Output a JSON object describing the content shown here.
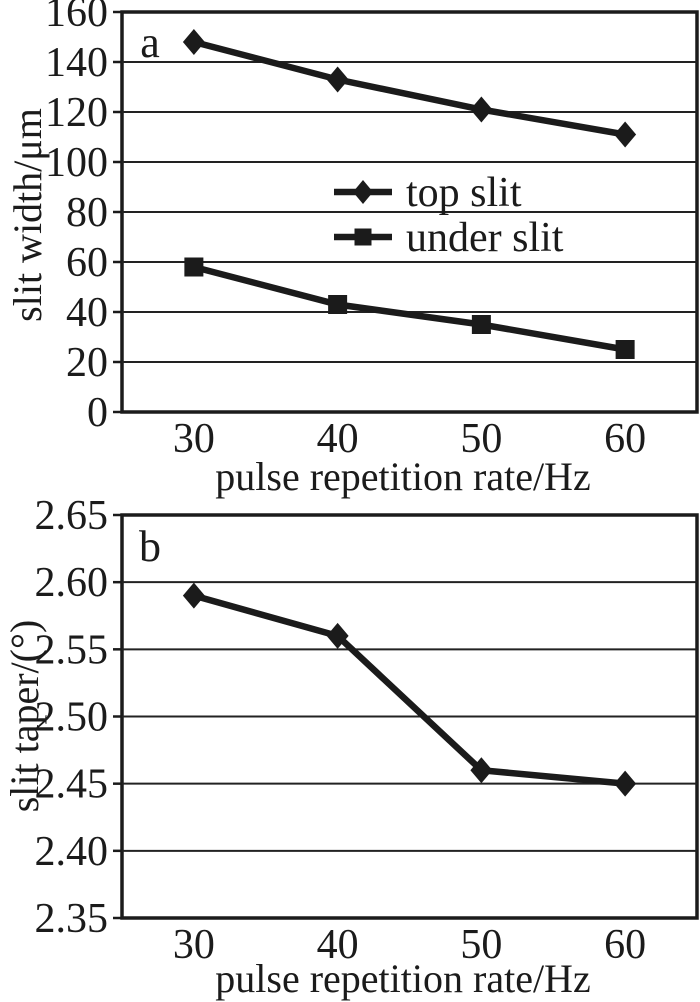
{
  "figure": {
    "background": "#ffffff",
    "ink": "#1b1b1b",
    "grid_color": "#222222"
  },
  "chart_data": [
    {
      "type": "line",
      "panel_label": "a",
      "title": "",
      "xlabel": "pulse repetition rate/Hz",
      "ylabel": "slit width/μm",
      "x": [
        30,
        40,
        50,
        60
      ],
      "xtick_labels": [
        "30",
        "40",
        "50",
        "60"
      ],
      "ylim": [
        0,
        160
      ],
      "ytick_step": 20,
      "ytick_labels": [
        "0",
        "20",
        "40",
        "60",
        "80",
        "100",
        "120",
        "140",
        "160"
      ],
      "grid": "horizontal",
      "series": [
        {
          "name": "top slit",
          "marker": "diamond",
          "values": [
            148,
            133,
            121,
            111
          ]
        },
        {
          "name": "under slit",
          "marker": "square",
          "values": [
            58,
            43,
            35,
            25
          ]
        }
      ],
      "legend": {
        "position": "inside-center",
        "entries": [
          "top slit",
          "under slit"
        ]
      }
    },
    {
      "type": "line",
      "panel_label": "b",
      "title": "",
      "xlabel": "pulse repetition rate/Hz",
      "ylabel": "slit taper/(°)",
      "x": [
        30,
        40,
        50,
        60
      ],
      "xtick_labels": [
        "30",
        "40",
        "50",
        "60"
      ],
      "ylim": [
        2.35,
        2.65
      ],
      "ytick_step": 0.05,
      "ytick_labels": [
        "2.35",
        "2.40",
        "2.45",
        "2.50",
        "2.55",
        "2.60",
        "2.65"
      ],
      "grid": "horizontal",
      "series": [
        {
          "name": "slit taper",
          "marker": "diamond",
          "values": [
            2.59,
            2.56,
            2.46,
            2.45
          ]
        }
      ],
      "legend": null
    }
  ]
}
